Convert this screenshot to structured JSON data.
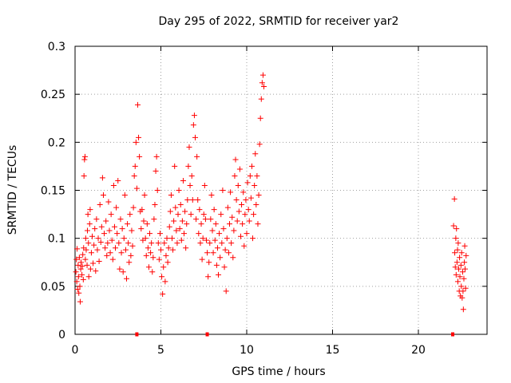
{
  "chart_data": {
    "type": "scatter",
    "title": "Day 295 of 2022, SRMTID for receiver yar2",
    "xlabel": "GPS time / hours",
    "ylabel": "SRMTID / TECUs",
    "xlim": [
      0,
      24
    ],
    "ylim": [
      0,
      0.3
    ],
    "grid": true,
    "marker": "+",
    "color": "#ff0000",
    "x_ticks": [
      0,
      5,
      10,
      15,
      20
    ],
    "x_tick_labels": [
      "0",
      "5",
      "10",
      "15",
      "20"
    ],
    "y_ticks": [
      0,
      0.05,
      0.1,
      0.15,
      0.2,
      0.25,
      0.3
    ],
    "y_tick_labels": [
      "0",
      "0.05",
      "0.1",
      "0.15",
      "0.2",
      "0.25",
      "0.3"
    ],
    "baseline_markers_x": [
      3.6,
      7.7,
      22.0
    ],
    "series": [
      {
        "name": "yar2",
        "points": [
          [
            0.05,
            0.065
          ],
          [
            0.08,
            0.078
          ],
          [
            0.1,
            0.055
          ],
          [
            0.12,
            0.089
          ],
          [
            0.15,
            0.047
          ],
          [
            0.18,
            0.072
          ],
          [
            0.2,
            0.06
          ],
          [
            0.22,
            0.043
          ],
          [
            0.25,
            0.08
          ],
          [
            0.28,
            0.05
          ],
          [
            0.3,
            0.034
          ],
          [
            0.33,
            0.068
          ],
          [
            0.35,
            0.075
          ],
          [
            0.4,
            0.062
          ],
          [
            0.42,
            0.071
          ],
          [
            0.45,
            0.083
          ],
          [
            0.48,
            0.057
          ],
          [
            0.5,
            0.09
          ],
          [
            0.52,
            0.165
          ],
          [
            0.55,
            0.182
          ],
          [
            0.58,
            0.185
          ],
          [
            0.6,
            0.078
          ],
          [
            0.62,
            0.1
          ],
          [
            0.65,
            0.088
          ],
          [
            0.7,
            0.072
          ],
          [
            0.72,
            0.108
          ],
          [
            0.75,
            0.125
          ],
          [
            0.78,
            0.095
          ],
          [
            0.8,
            0.06
          ],
          [
            0.85,
            0.115
          ],
          [
            0.88,
            0.13
          ],
          [
            0.9,
            0.068
          ],
          [
            0.95,
            0.085
          ],
          [
            1.0,
            0.102
          ],
          [
            1.05,
            0.074
          ],
          [
            1.1,
            0.093
          ],
          [
            1.15,
            0.11
          ],
          [
            1.2,
            0.066
          ],
          [
            1.25,
            0.12
          ],
          [
            1.3,
            0.088
          ],
          [
            1.35,
            0.1
          ],
          [
            1.4,
            0.076
          ],
          [
            1.45,
            0.135
          ],
          [
            1.5,
            0.096
          ],
          [
            1.55,
            0.112
          ],
          [
            1.6,
            0.163
          ],
          [
            1.65,
            0.145
          ],
          [
            1.7,
            0.105
          ],
          [
            1.75,
            0.09
          ],
          [
            1.8,
            0.118
          ],
          [
            1.85,
            0.082
          ],
          [
            1.9,
            0.095
          ],
          [
            1.95,
            0.138
          ],
          [
            2.0,
            0.108
          ],
          [
            2.05,
            0.085
          ],
          [
            2.1,
            0.125
          ],
          [
            2.15,
            0.098
          ],
          [
            2.2,
            0.078
          ],
          [
            2.25,
            0.155
          ],
          [
            2.3,
            0.112
          ],
          [
            2.35,
            0.09
          ],
          [
            2.4,
            0.132
          ],
          [
            2.45,
            0.105
          ],
          [
            2.5,
            0.16
          ],
          [
            2.55,
            0.095
          ],
          [
            2.6,
            0.068
          ],
          [
            2.65,
            0.12
          ],
          [
            2.7,
            0.085
          ],
          [
            2.75,
            0.11
          ],
          [
            2.8,
            0.065
          ],
          [
            2.85,
            0.1
          ],
          [
            2.9,
            0.145
          ],
          [
            2.95,
            0.088
          ],
          [
            3.0,
            0.058
          ],
          [
            3.05,
            0.115
          ],
          [
            3.1,
            0.095
          ],
          [
            3.15,
            0.075
          ],
          [
            3.2,
            0.125
          ],
          [
            3.25,
            0.082
          ],
          [
            3.3,
            0.108
          ],
          [
            3.35,
            0.092
          ],
          [
            3.4,
            0.132
          ],
          [
            3.45,
            0.165
          ],
          [
            3.5,
            0.175
          ],
          [
            3.55,
            0.2
          ],
          [
            3.6,
            0.152
          ],
          [
            3.65,
            0.239
          ],
          [
            3.7,
            0.205
          ],
          [
            3.75,
            0.185
          ],
          [
            3.8,
            0.128
          ],
          [
            3.85,
            0.11
          ],
          [
            3.9,
            0.13
          ],
          [
            3.95,
            0.098
          ],
          [
            4.0,
            0.118
          ],
          [
            4.05,
            0.145
          ],
          [
            4.1,
            0.1
          ],
          [
            4.15,
            0.082
          ],
          [
            4.2,
            0.115
          ],
          [
            4.25,
            0.09
          ],
          [
            4.3,
            0.07
          ],
          [
            4.35,
            0.105
          ],
          [
            4.4,
            0.085
          ],
          [
            4.45,
            0.095
          ],
          [
            4.5,
            0.065
          ],
          [
            4.55,
            0.08
          ],
          [
            4.6,
            0.12
          ],
          [
            4.65,
            0.135
          ],
          [
            4.7,
            0.17
          ],
          [
            4.75,
            0.185
          ],
          [
            4.8,
            0.15
          ],
          [
            4.85,
            0.095
          ],
          [
            4.9,
            0.078
          ],
          [
            4.95,
            0.105
          ],
          [
            5.0,
            0.088
          ],
          [
            5.05,
            0.06
          ],
          [
            5.1,
            0.042
          ],
          [
            5.15,
            0.07
          ],
          [
            5.2,
            0.095
          ],
          [
            5.25,
            0.055
          ],
          [
            5.3,
            0.082
          ],
          [
            5.35,
            0.1
          ],
          [
            5.4,
            0.075
          ],
          [
            5.45,
            0.09
          ],
          [
            5.5,
            0.112
          ],
          [
            5.55,
            0.128
          ],
          [
            5.6,
            0.145
          ],
          [
            5.65,
            0.1
          ],
          [
            5.7,
            0.088
          ],
          [
            5.75,
            0.118
          ],
          [
            5.8,
            0.175
          ],
          [
            5.85,
            0.132
          ],
          [
            5.9,
            0.108
          ],
          [
            5.95,
            0.095
          ],
          [
            6.0,
            0.125
          ],
          [
            6.05,
            0.15
          ],
          [
            6.1,
            0.11
          ],
          [
            6.15,
            0.135
          ],
          [
            6.2,
            0.098
          ],
          [
            6.25,
            0.118
          ],
          [
            6.3,
            0.16
          ],
          [
            6.35,
            0.105
          ],
          [
            6.4,
            0.128
          ],
          [
            6.45,
            0.09
          ],
          [
            6.5,
            0.115
          ],
          [
            6.55,
            0.14
          ],
          [
            6.6,
            0.175
          ],
          [
            6.65,
            0.195
          ],
          [
            6.7,
            0.155
          ],
          [
            6.75,
            0.125
          ],
          [
            6.8,
            0.165
          ],
          [
            6.85,
            0.14
          ],
          [
            6.9,
            0.218
          ],
          [
            6.95,
            0.228
          ],
          [
            7.0,
            0.205
          ],
          [
            7.05,
            0.12
          ],
          [
            7.1,
            0.185
          ],
          [
            7.15,
            0.14
          ],
          [
            7.2,
            0.105
          ],
          [
            7.25,
            0.13
          ],
          [
            7.3,
            0.095
          ],
          [
            7.35,
            0.115
          ],
          [
            7.4,
            0.078
          ],
          [
            7.45,
            0.1
          ],
          [
            7.5,
            0.125
          ],
          [
            7.55,
            0.155
          ],
          [
            7.6,
            0.12
          ],
          [
            7.65,
            0.098
          ],
          [
            7.7,
            0.085
          ],
          [
            7.75,
            0.06
          ],
          [
            7.8,
            0.075
          ],
          [
            7.85,
            0.095
          ],
          [
            7.9,
            0.12
          ],
          [
            7.95,
            0.145
          ],
          [
            8.0,
            0.108
          ],
          [
            8.05,
            0.085
          ],
          [
            8.1,
            0.13
          ],
          [
            8.15,
            0.098
          ],
          [
            8.2,
            0.115
          ],
          [
            8.25,
            0.072
          ],
          [
            8.3,
            0.09
          ],
          [
            8.35,
            0.062
          ],
          [
            8.4,
            0.105
          ],
          [
            8.45,
            0.08
          ],
          [
            8.5,
            0.125
          ],
          [
            8.55,
            0.095
          ],
          [
            8.6,
            0.15
          ],
          [
            8.65,
            0.11
          ],
          [
            8.7,
            0.07
          ],
          [
            8.75,
            0.088
          ],
          [
            8.8,
            0.045
          ],
          [
            8.85,
            0.1
          ],
          [
            8.9,
            0.132
          ],
          [
            8.95,
            0.085
          ],
          [
            9.0,
            0.115
          ],
          [
            9.05,
            0.148
          ],
          [
            9.1,
            0.095
          ],
          [
            9.15,
            0.122
          ],
          [
            9.2,
            0.08
          ],
          [
            9.25,
            0.108
          ],
          [
            9.3,
            0.165
          ],
          [
            9.35,
            0.182
          ],
          [
            9.4,
            0.14
          ],
          [
            9.45,
            0.118
          ],
          [
            9.5,
            0.155
          ],
          [
            9.55,
            0.128
          ],
          [
            9.6,
            0.172
          ],
          [
            9.65,
            0.102
          ],
          [
            9.7,
            0.135
          ],
          [
            9.75,
            0.115
          ],
          [
            9.8,
            0.148
          ],
          [
            9.85,
            0.092
          ],
          [
            9.9,
            0.125
          ],
          [
            9.95,
            0.14
          ],
          [
            10.0,
            0.105
          ],
          [
            10.05,
            0.158
          ],
          [
            10.1,
            0.13
          ],
          [
            10.15,
            0.118
          ],
          [
            10.2,
            0.165
          ],
          [
            10.25,
            0.142
          ],
          [
            10.3,
            0.175
          ],
          [
            10.35,
            0.1
          ],
          [
            10.4,
            0.125
          ],
          [
            10.45,
            0.155
          ],
          [
            10.5,
            0.188
          ],
          [
            10.55,
            0.135
          ],
          [
            10.6,
            0.165
          ],
          [
            10.65,
            0.115
          ],
          [
            10.7,
            0.145
          ],
          [
            10.75,
            0.198
          ],
          [
            10.8,
            0.225
          ],
          [
            10.85,
            0.245
          ],
          [
            10.9,
            0.262
          ],
          [
            10.95,
            0.27
          ],
          [
            11.0,
            0.258
          ],
          [
            22.05,
            0.113
          ],
          [
            22.1,
            0.141
          ],
          [
            22.12,
            0.085
          ],
          [
            22.15,
            0.07
          ],
          [
            22.18,
            0.1
          ],
          [
            22.2,
            0.062
          ],
          [
            22.22,
            0.11
          ],
          [
            22.25,
            0.075
          ],
          [
            22.28,
            0.088
          ],
          [
            22.3,
            0.055
          ],
          [
            22.32,
            0.095
          ],
          [
            22.35,
            0.068
          ],
          [
            22.38,
            0.045
          ],
          [
            22.4,
            0.08
          ],
          [
            22.42,
            0.06
          ],
          [
            22.45,
            0.04
          ],
          [
            22.48,
            0.072
          ],
          [
            22.5,
            0.05
          ],
          [
            22.52,
            0.085
          ],
          [
            22.55,
            0.038
          ],
          [
            22.58,
            0.065
          ],
          [
            22.6,
            0.045
          ],
          [
            22.62,
            0.026
          ],
          [
            22.65,
            0.058
          ],
          [
            22.68,
            0.075
          ],
          [
            22.7,
            0.092
          ],
          [
            22.72,
            0.068
          ],
          [
            22.75,
            0.048
          ],
          [
            22.78,
            0.082
          ]
        ]
      }
    ]
  }
}
